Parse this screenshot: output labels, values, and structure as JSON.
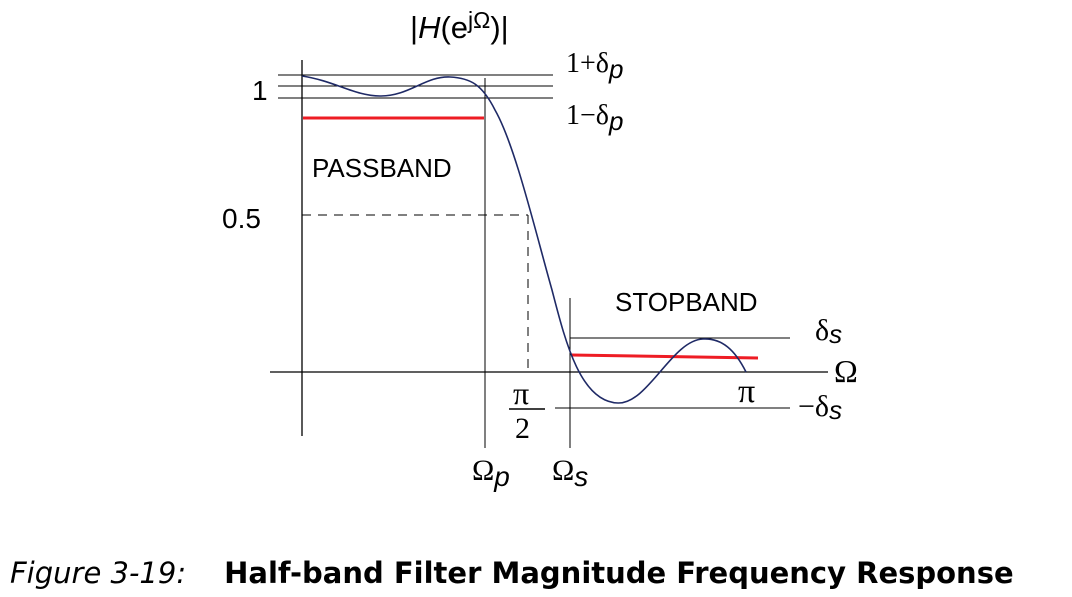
{
  "diagram": {
    "y_axis_title": {
      "prefix": "|",
      "H": "H",
      "open": "(e",
      "sup": "jΩ",
      "close": ")|"
    },
    "y_tick_1": "1",
    "y_tick_half": "0.5",
    "one_plus_delta_p": {
      "main": "1+δ",
      "sub": "p"
    },
    "one_minus_delta_p": {
      "main": "1−δ",
      "sub": "p"
    },
    "passband_label": "PASSBAND",
    "stopband_label": "STOPBAND",
    "delta_s": {
      "main": "δ",
      "sub": "s"
    },
    "minus_delta_s": {
      "main": "−δ",
      "sub": "s"
    },
    "x_axis_symbol": "Ω",
    "pi_label": "π",
    "pi_over_2": {
      "num": "π",
      "den": "2"
    },
    "omega_p": {
      "main": "Ω",
      "sub": "p"
    },
    "omega_s": {
      "main": "Ω",
      "sub": "s"
    },
    "colors": {
      "curve": "#1f2a66",
      "spec_lines": "#ee1c24",
      "axes": "#000000"
    }
  },
  "caption": {
    "figure_number": "Figure 3-19:",
    "title": "Half-band Filter Magnitude Frequency Response"
  }
}
